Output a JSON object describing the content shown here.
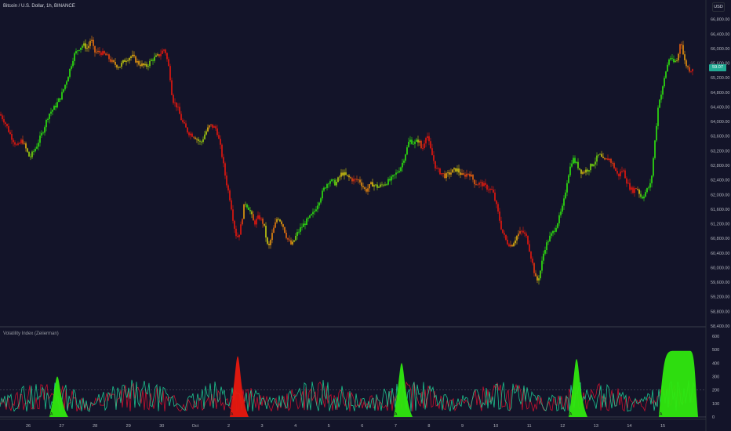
{
  "header": {
    "symbol_legend": "Bitcoin / U.S. Dollar, 1h, BINANCE",
    "currency": "USD",
    "last_price": "59.07"
  },
  "indicator": {
    "name": "Volatility Index (Zeiierman)",
    "y_ticks": [
      "600",
      "500",
      "400",
      "300",
      "200",
      "100",
      "0"
    ]
  },
  "price_axis": {
    "ticks": [
      "66,800.00",
      "66,400.00",
      "66,000.00",
      "65,600.00",
      "65,200.00",
      "64,800.00",
      "64,400.00",
      "64,000.00",
      "63,600.00",
      "63,200.00",
      "62,800.00",
      "62,400.00",
      "62,000.00",
      "61,600.00",
      "61,200.00",
      "60,800.00",
      "60,400.00",
      "60,000.00",
      "59,600.00",
      "59,200.00",
      "58,800.00",
      "58,400.00"
    ]
  },
  "time_axis": {
    "ticks": [
      "26",
      "27",
      "28",
      "29",
      "30",
      "Oct",
      "2",
      "3",
      "4",
      "5",
      "6",
      "7",
      "8",
      "9",
      "10",
      "11",
      "12",
      "13",
      "14",
      "15"
    ]
  },
  "colors": {
    "background": "#131429",
    "bull": "#2fe80e",
    "bear": "#e8180e",
    "mid": "#e8c60e",
    "osc_green": "#1ee0a0",
    "osc_red": "#e81030",
    "price_badge": "#22ab94"
  },
  "chart_data": [
    {
      "type": "candlestick",
      "title": "Bitcoin / U.S. Dollar, 1h, BINANCE",
      "ylim": [
        58400,
        66900
      ],
      "x_labels": [
        "26",
        "27",
        "28",
        "29",
        "30",
        "Oct",
        "2",
        "3",
        "4",
        "5",
        "6",
        "7",
        "8",
        "9",
        "10",
        "11",
        "12",
        "13",
        "14",
        "15"
      ],
      "close_path": [
        [
          0,
          64200
        ],
        [
          6,
          64000
        ],
        [
          14,
          63600
        ],
        [
          22,
          63300
        ],
        [
          28,
          63500
        ],
        [
          38,
          63000
        ],
        [
          46,
          63300
        ],
        [
          54,
          63700
        ],
        [
          62,
          64200
        ],
        [
          70,
          64400
        ],
        [
          78,
          64700
        ],
        [
          86,
          65200
        ],
        [
          94,
          65800
        ],
        [
          100,
          66000
        ],
        [
          106,
          66100
        ],
        [
          112,
          66000
        ],
        [
          116,
          66300
        ],
        [
          120,
          65900
        ],
        [
          128,
          65900
        ],
        [
          136,
          65800
        ],
        [
          144,
          65600
        ],
        [
          152,
          65500
        ],
        [
          160,
          65700
        ],
        [
          168,
          65800
        ],
        [
          176,
          65600
        ],
        [
          186,
          65500
        ],
        [
          194,
          65700
        ],
        [
          202,
          65800
        ],
        [
          210,
          66000
        ],
        [
          216,
          65400
        ],
        [
          220,
          64600
        ],
        [
          226,
          64400
        ],
        [
          232,
          64000
        ],
        [
          240,
          63700
        ],
        [
          248,
          63600
        ],
        [
          256,
          63400
        ],
        [
          262,
          63700
        ],
        [
          268,
          63900
        ],
        [
          276,
          63800
        ],
        [
          282,
          63200
        ],
        [
          288,
          62400
        ],
        [
          294,
          61800
        ],
        [
          298,
          61200
        ],
        [
          302,
          60800
        ],
        [
          306,
          61000
        ],
        [
          312,
          61800
        ],
        [
          318,
          61600
        ],
        [
          324,
          61200
        ],
        [
          330,
          61400
        ],
        [
          336,
          61200
        ],
        [
          342,
          60500
        ],
        [
          348,
          61000
        ],
        [
          354,
          61400
        ],
        [
          360,
          61200
        ],
        [
          366,
          60800
        ],
        [
          372,
          60600
        ],
        [
          378,
          60900
        ],
        [
          384,
          61100
        ],
        [
          392,
          61300
        ],
        [
          400,
          61500
        ],
        [
          408,
          61900
        ],
        [
          414,
          62200
        ],
        [
          420,
          62400
        ],
        [
          428,
          62300
        ],
        [
          436,
          62600
        ],
        [
          442,
          62500
        ],
        [
          450,
          62400
        ],
        [
          458,
          62400
        ],
        [
          466,
          62100
        ],
        [
          474,
          62300
        ],
        [
          482,
          62200
        ],
        [
          490,
          62300
        ],
        [
          498,
          62400
        ],
        [
          506,
          62600
        ],
        [
          512,
          62800
        ],
        [
          518,
          63200
        ],
        [
          522,
          63500
        ],
        [
          528,
          63400
        ],
        [
          534,
          63500
        ],
        [
          538,
          63200
        ],
        [
          544,
          63700
        ],
        [
          548,
          63300
        ],
        [
          552,
          63000
        ],
        [
          556,
          62700
        ],
        [
          562,
          62600
        ],
        [
          568,
          62500
        ],
        [
          574,
          62600
        ],
        [
          582,
          62700
        ],
        [
          590,
          62500
        ],
        [
          598,
          62600
        ],
        [
          606,
          62300
        ],
        [
          614,
          62300
        ],
        [
          620,
          62200
        ],
        [
          628,
          62100
        ],
        [
          634,
          61600
        ],
        [
          640,
          61000
        ],
        [
          646,
          60700
        ],
        [
          652,
          60600
        ],
        [
          660,
          60900
        ],
        [
          666,
          61000
        ],
        [
          672,
          60800
        ],
        [
          678,
          60200
        ],
        [
          684,
          59600
        ],
        [
          688,
          59800
        ],
        [
          694,
          60500
        ],
        [
          700,
          60800
        ],
        [
          706,
          61000
        ],
        [
          712,
          61300
        ],
        [
          718,
          61700
        ],
        [
          724,
          62500
        ],
        [
          730,
          63000
        ],
        [
          736,
          62800
        ],
        [
          742,
          62600
        ],
        [
          750,
          62700
        ],
        [
          758,
          62900
        ],
        [
          764,
          63100
        ],
        [
          770,
          62900
        ],
        [
          776,
          63000
        ],
        [
          782,
          62800
        ],
        [
          788,
          62500
        ],
        [
          794,
          62700
        ],
        [
          800,
          62300
        ],
        [
          806,
          62100
        ],
        [
          812,
          62200
        ],
        [
          818,
          61900
        ],
        [
          824,
          62100
        ],
        [
          830,
          62300
        ],
        [
          836,
          63700
        ],
        [
          840,
          64600
        ],
        [
          844,
          64800
        ],
        [
          848,
          65300
        ],
        [
          854,
          65800
        ],
        [
          858,
          65600
        ],
        [
          864,
          65700
        ],
        [
          868,
          66300
        ],
        [
          872,
          65700
        ],
        [
          876,
          65500
        ],
        [
          880,
          65400
        ],
        [
          884,
          65500
        ]
      ]
    },
    {
      "type": "area",
      "title": "Volatility Index (Zeiierman)",
      "ylim": [
        0,
        640
      ],
      "spikes": [
        {
          "x_center": 73,
          "peak": 300,
          "color": "bull",
          "marker": "A"
        },
        {
          "x_center": 303,
          "peak": 450,
          "color": "bear",
          "marker": "A"
        },
        {
          "x_center": 512,
          "peak": 400,
          "color": "bull",
          "marker": "A"
        },
        {
          "x_center": 735,
          "peak": 430,
          "color": "bull",
          "marker": "A"
        },
        {
          "x_center": 862,
          "peak": 490,
          "color": "bull",
          "marker": "A"
        }
      ]
    }
  ]
}
